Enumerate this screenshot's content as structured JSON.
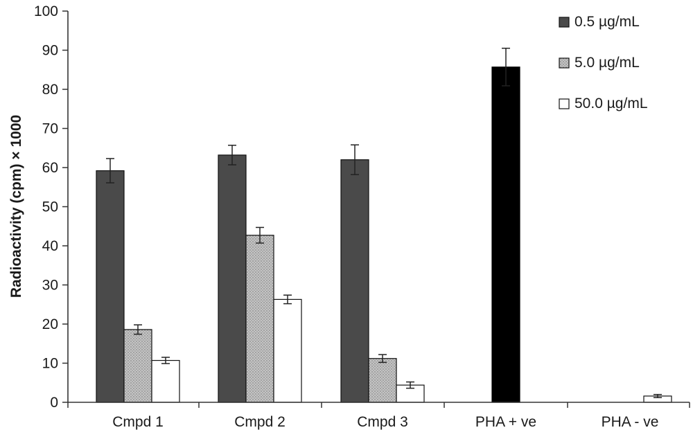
{
  "chart_data": {
    "type": "bar",
    "title": "",
    "xlabel": "",
    "ylabel": "Radioactivity (cpm) × 1000",
    "ylim": [
      0,
      100
    ],
    "yticks": [
      0,
      10,
      20,
      30,
      40,
      50,
      60,
      70,
      80,
      90,
      100
    ],
    "grid": false,
    "legend_position": "top-right",
    "categories": [
      "Cmpd 1",
      "Cmpd 2",
      "Cmpd 3",
      "PHA + ve",
      "PHA - ve"
    ],
    "series": [
      {
        "name": "0.5 µg/mL",
        "color": "#4a4a4a",
        "values": [
          59.2,
          63.2,
          62.0,
          null,
          null
        ],
        "errors": [
          3.1,
          2.5,
          3.8,
          null,
          null
        ]
      },
      {
        "name": "5.0 µg/mL",
        "color": "#b8b8b8",
        "pattern": "dotted",
        "values": [
          18.6,
          42.7,
          11.2,
          null,
          null
        ],
        "errors": [
          1.2,
          2.0,
          1.0,
          null,
          null
        ]
      },
      {
        "name": "50.0 µg/mL",
        "color": "#ffffff",
        "values": [
          10.7,
          26.3,
          4.4,
          null,
          1.6
        ],
        "errors": [
          0.8,
          1.1,
          0.8,
          null,
          0.4
        ]
      }
    ],
    "extra_bars": [
      {
        "category": "PHA + ve",
        "value": 85.7,
        "error": 4.8,
        "color": "#000000"
      }
    ]
  }
}
